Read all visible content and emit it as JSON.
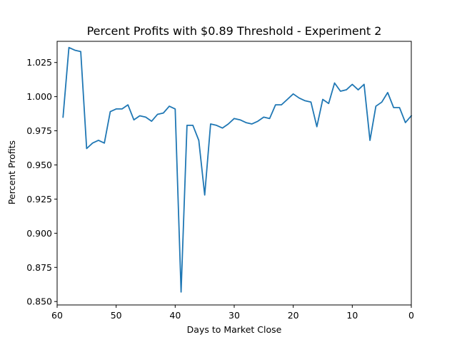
{
  "chart_data": {
    "type": "line",
    "title": "Percent Profits with $0.89 Threshold - Experiment 2",
    "xlabel": "Days to Market Close",
    "ylabel": "Percent Profits",
    "xlim": [
      60,
      0
    ],
    "ylim": [
      0.8475,
      1.0405
    ],
    "x_ticks": [
      60,
      50,
      40,
      30,
      20,
      10,
      0
    ],
    "y_ticks": [
      0.85,
      0.875,
      0.9,
      0.925,
      0.95,
      0.975,
      1.0,
      1.025
    ],
    "x_tick_labels": [
      "60",
      "50",
      "40",
      "30",
      "20",
      "10",
      "0"
    ],
    "y_tick_labels": [
      "0.850",
      "0.875",
      "0.900",
      "0.925",
      "0.950",
      "0.975",
      "1.000",
      "1.025"
    ],
    "grid": false,
    "line_color": "#1f77b4",
    "series": [
      {
        "x": [
          59,
          58,
          57,
          56,
          55,
          54,
          53,
          52,
          51,
          50,
          49,
          48,
          47,
          46,
          45,
          44,
          43,
          42,
          41,
          40,
          39,
          38,
          37,
          36,
          35,
          34,
          33,
          32,
          31,
          30,
          29,
          28,
          27,
          26,
          25,
          24,
          23,
          22,
          21,
          20,
          19,
          18,
          17,
          16,
          15,
          14,
          13,
          12,
          11,
          10,
          9,
          8,
          7,
          6,
          5,
          4,
          3,
          2,
          1,
          0
        ],
        "values": [
          0.985,
          1.036,
          1.034,
          1.033,
          0.962,
          0.966,
          0.968,
          0.966,
          0.989,
          0.991,
          0.991,
          0.994,
          0.983,
          0.986,
          0.985,
          0.982,
          0.987,
          0.988,
          0.993,
          0.991,
          0.857,
          0.979,
          0.979,
          0.968,
          0.928,
          0.98,
          0.979,
          0.977,
          0.98,
          0.984,
          0.983,
          0.981,
          0.98,
          0.982,
          0.985,
          0.984,
          0.994,
          0.994,
          0.998,
          1.002,
          0.999,
          0.997,
          0.996,
          0.978,
          0.998,
          0.995,
          1.01,
          1.004,
          1.005,
          1.009,
          1.005,
          1.009,
          0.968,
          0.993,
          0.996,
          1.003,
          0.992,
          0.992,
          0.981,
          0.986
        ]
      }
    ]
  }
}
